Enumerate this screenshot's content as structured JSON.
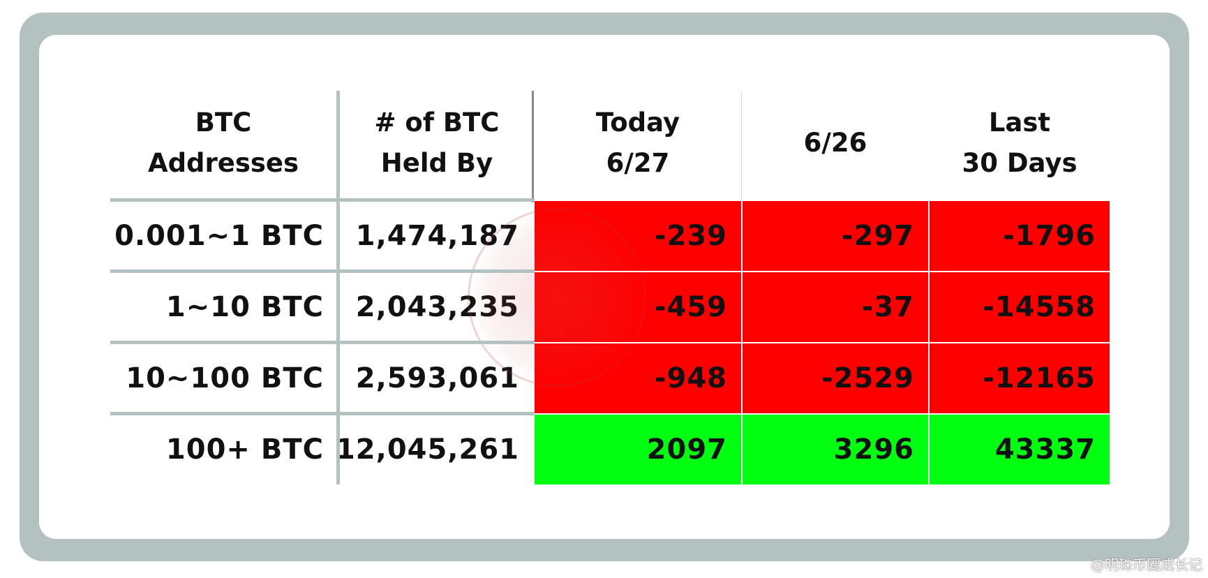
{
  "chart_data": {
    "type": "table",
    "columns": [
      "BTC\nAddresses",
      "# of BTC\nHeld By",
      "Today\n6/27",
      "6/26",
      "Last\n30 Days"
    ],
    "rows": [
      {
        "label": "0.001~1 BTC",
        "held_by": "1,474,187",
        "today": "-239",
        "prev": "-297",
        "last30": "-1796"
      },
      {
        "label": "1~10 BTC",
        "held_by": "2,043,235",
        "today": "-459",
        "prev": "-37",
        "last30": "-14558"
      },
      {
        "label": "10~100 BTC",
        "held_by": "2,593,061",
        "today": "-948",
        "prev": "-2529",
        "last30": "-12165"
      },
      {
        "label": "100+ BTC",
        "held_by": "12,045,261",
        "today": "2097",
        "prev": "3296",
        "last30": "43337"
      }
    ],
    "colors": {
      "negative": "#ff0000",
      "positive": "#00ff10",
      "frame": "#b4c1c1"
    }
  },
  "footer": {
    "watermark_text": "@明珠币圈成长记"
  }
}
